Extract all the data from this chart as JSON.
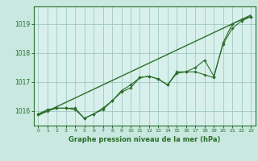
{
  "title": "Graphe pression niveau de la mer (hPa)",
  "bg_color": "#c8e8e0",
  "plot_bg_color": "#d8f0ec",
  "grid_color": "#a0c8c0",
  "line_color": "#2a6e2a",
  "ylim": [
    1015.5,
    1019.6
  ],
  "xlim": [
    -0.5,
    23.5
  ],
  "yticks": [
    1016,
    1017,
    1018,
    1019
  ],
  "xticks": [
    0,
    1,
    2,
    3,
    4,
    5,
    6,
    7,
    8,
    9,
    10,
    11,
    12,
    13,
    14,
    15,
    16,
    17,
    18,
    19,
    20,
    21,
    22,
    23
  ],
  "series1": [
    1015.9,
    1016.05,
    1016.1,
    1016.1,
    1016.1,
    1015.75,
    1015.9,
    1016.05,
    1016.35,
    1016.65,
    1016.8,
    1017.15,
    1017.2,
    1017.1,
    1016.9,
    1017.35,
    1017.35,
    1017.35,
    1017.25,
    1017.15,
    1018.35,
    1019.0,
    1019.15,
    1019.25
  ],
  "series2": [
    1015.9,
    1016.0,
    1016.1,
    1016.1,
    1016.05,
    1015.75,
    1015.9,
    1016.1,
    1016.35,
    1016.7,
    1016.9,
    1017.15,
    1017.2,
    1017.1,
    1016.9,
    1017.3,
    1017.35,
    1017.5,
    1017.75,
    1017.2,
    1018.3,
    1018.85,
    1019.1,
    1019.25
  ],
  "trend_x": [
    0,
    23
  ],
  "trend_y": [
    1015.85,
    1019.3
  ]
}
